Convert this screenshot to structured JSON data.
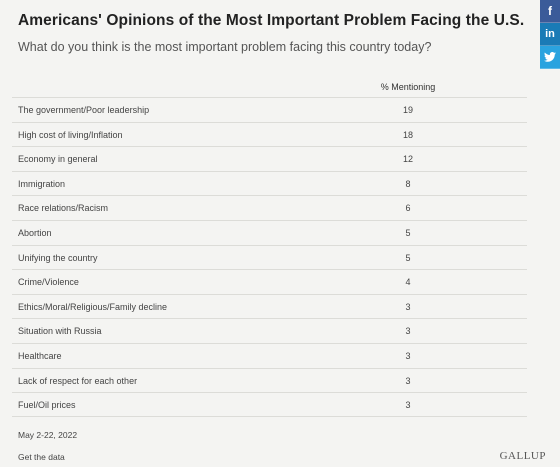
{
  "header": {
    "title": "Americans' Opinions of the Most Important Problem Facing the U.S.",
    "subtitle": "What do you think is the most important problem facing this country today?"
  },
  "social": {
    "facebook_icon": "f",
    "linkedin_icon": "in",
    "twitter_icon": "twitter-bird"
  },
  "colors": {
    "facebook": "#3b5b99",
    "linkedin": "#1a7bb6",
    "twitter": "#2aa3df"
  },
  "chart_data": {
    "type": "table",
    "title": "Americans' Opinions of the Most Important Problem Facing the U.S.",
    "subtitle": "What do you think is the most important problem facing this country today?",
    "column_header": "% Mentioning",
    "rows": [
      {
        "label": "The government/Poor leadership",
        "value": "19"
      },
      {
        "label": "High cost of living/Inflation",
        "value": "18"
      },
      {
        "label": "Economy in general",
        "value": "12"
      },
      {
        "label": "Immigration",
        "value": "8"
      },
      {
        "label": "Race relations/Racism",
        "value": "6"
      },
      {
        "label": "Abortion",
        "value": "5"
      },
      {
        "label": "Unifying the country",
        "value": "5"
      },
      {
        "label": "Crime/Violence",
        "value": "4"
      },
      {
        "label": "Ethics/Moral/Religious/Family decline",
        "value": "3"
      },
      {
        "label": "Situation with Russia",
        "value": "3"
      },
      {
        "label": "Healthcare",
        "value": "3"
      },
      {
        "label": "Lack of respect for each other",
        "value": "3"
      },
      {
        "label": "Fuel/Oil prices",
        "value": "3"
      }
    ]
  },
  "footer": {
    "date_note": "May 2-22, 2022",
    "get_data": "Get the data",
    "brand": "GALLUP"
  }
}
